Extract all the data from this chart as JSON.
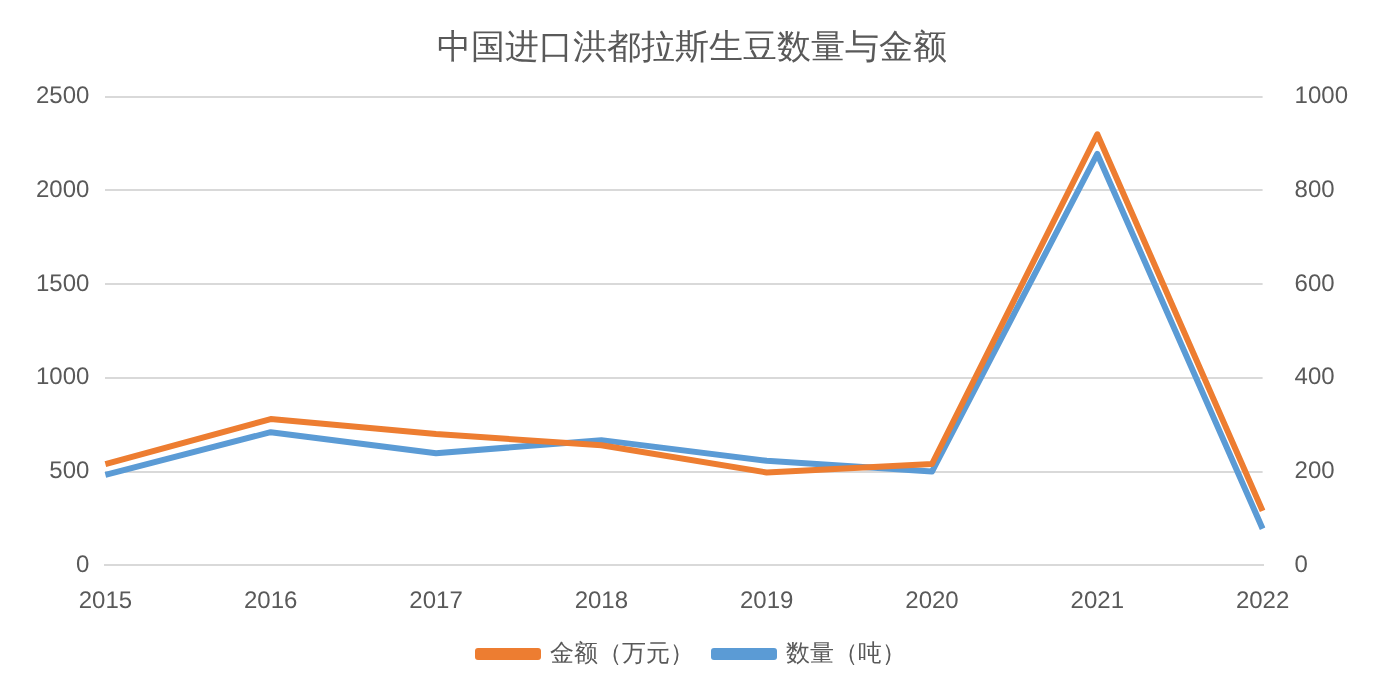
{
  "chart_data": {
    "type": "line",
    "title": "中国进口洪都拉斯生豆数量与金额",
    "categories": [
      "2015",
      "2016",
      "2017",
      "2018",
      "2019",
      "2020",
      "2021",
      "2022"
    ],
    "series": [
      {
        "name": "金额（万元）",
        "color": "#ed7d31",
        "values": [
          540,
          780,
          700,
          640,
          495,
          540,
          2300,
          290
        ]
      },
      {
        "name": "数量（吨）",
        "color": "#5b9bd5",
        "axis": "y2",
        "values": [
          193,
          284,
          239,
          267,
          223,
          200,
          878,
          78
        ]
      }
    ],
    "ylim": [
      0,
      2500
    ],
    "yticks": [
      0,
      500,
      1000,
      1500,
      2000,
      2500
    ],
    "y2lim": [
      0,
      1000
    ],
    "y2ticks": [
      0,
      200,
      400,
      600,
      800,
      1000
    ],
    "grid": "y",
    "legend": "bottom",
    "marker": "none",
    "line_style": "solid"
  }
}
